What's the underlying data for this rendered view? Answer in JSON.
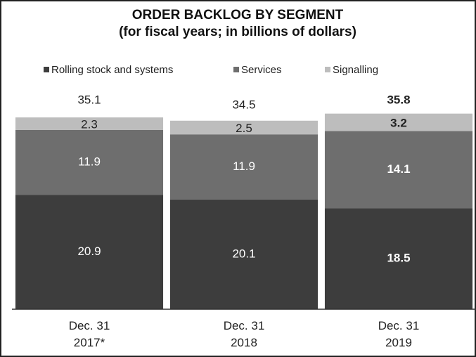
{
  "chart_data": {
    "type": "stacked_bar",
    "title": "ORDER BACKLOG BY SEGMENT",
    "subtitle": "(for fiscal years; in billions of dollars)",
    "categories": [
      "Dec. 31\n2017*",
      "Dec. 31\n2018",
      "Dec. 31\n2019"
    ],
    "series": [
      {
        "name": "Rolling stock and systems",
        "color": "#3d3d3d",
        "values": [
          20.9,
          20.1,
          18.5
        ]
      },
      {
        "name": "Services",
        "color": "#6e6e6e",
        "values": [
          11.9,
          11.9,
          14.1
        ]
      },
      {
        "name": "Signalling",
        "color": "#bdbdbd",
        "values": [
          2.3,
          2.5,
          3.2
        ]
      }
    ],
    "totals": [
      35.1,
      34.5,
      35.8
    ],
    "ylim": [
      0,
      40
    ],
    "legend": "top"
  }
}
